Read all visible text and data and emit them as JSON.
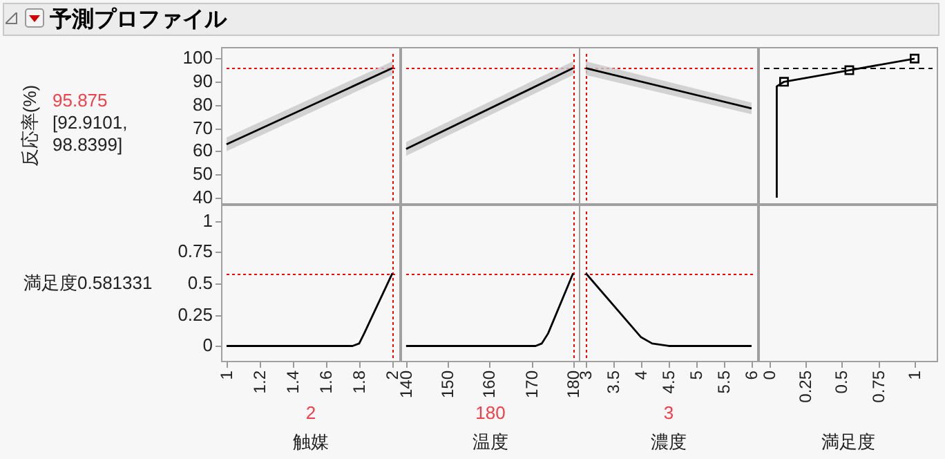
{
  "chart_data": [
    {
      "type": "line",
      "title": "予測プロファイル",
      "ylabel": "反応率(%)",
      "annotations": [
        "95.875",
        "[92.9101, 98.8399]"
      ],
      "xlim": [
        0.967,
        2.05
      ],
      "ylim": [
        37,
        105
      ],
      "yticks": [
        40,
        50,
        60,
        70,
        80,
        90,
        100
      ],
      "tick_labels": "y",
      "ref_lines": [
        {
          "axis": "x",
          "value": 2,
          "color": "#ff0000",
          "line_style": "dotted"
        },
        {
          "axis": "y",
          "value": 95.875,
          "color": "#ff0000",
          "line_style": "dotted"
        }
      ],
      "series": [
        {
          "color": "#000000",
          "x": [
            1,
            2
          ],
          "values": [
            63,
            95.875
          ],
          "lower": [
            60,
            92.9101
          ],
          "upper": [
            66,
            98.8399
          ]
        }
      ]
    },
    {
      "type": "line",
      "xlim": [
        138.7,
        181.7
      ],
      "ylim": [
        37,
        105
      ],
      "tick_labels": false,
      "ref_lines": [
        {
          "axis": "x",
          "value": 180,
          "color": "#ff0000",
          "line_style": "dotted"
        },
        {
          "axis": "y",
          "value": 95.875,
          "color": "#ff0000",
          "line_style": "dotted"
        }
      ],
      "series": [
        {
          "color": "#000000",
          "x": [
            140,
            180
          ],
          "values": [
            61,
            95.875
          ],
          "lower": [
            58,
            92.9101
          ],
          "upper": [
            64,
            98.8399
          ]
        }
      ]
    },
    {
      "type": "line",
      "xlim": [
        2.875,
        6.125
      ],
      "ylim": [
        37,
        105
      ],
      "tick_labels": false,
      "ref_lines": [
        {
          "axis": "x",
          "value": 3,
          "color": "#ff0000",
          "line_style": "dotted"
        },
        {
          "axis": "y",
          "value": 95.875,
          "color": "#ff0000",
          "line_style": "dotted"
        }
      ],
      "series": [
        {
          "color": "#000000",
          "x": [
            3,
            6
          ],
          "values": [
            95.875,
            78.5
          ],
          "lower": [
            92.9101,
            76
          ],
          "upper": [
            98.8399,
            81
          ]
        }
      ]
    },
    {
      "type": "line",
      "xlim": [
        -0.076,
        1.162
      ],
      "ylim": [
        37,
        105
      ],
      "tick_labels": false,
      "ref_lines": [
        {
          "axis": "y",
          "value": 95.875,
          "color": "#000000",
          "line_style": "dashed"
        }
      ],
      "series": [
        {
          "color": "#000000",
          "x": [
            0.05,
            0.05,
            0.1,
            0.55,
            1
          ],
          "values": [
            40,
            88,
            90,
            95,
            100
          ],
          "marker": "none"
        },
        {
          "type": "scatter",
          "color": "#000000",
          "x": [
            0.1,
            0.55,
            1
          ],
          "values": [
            90,
            95,
            100
          ],
          "marker": "square"
        }
      ]
    },
    {
      "type": "line",
      "xlabel": "触媒",
      "ylabel": "満足度0.581331",
      "annotations": [
        "2"
      ],
      "xlim": [
        0.967,
        2.05
      ],
      "xticks": [
        1,
        1.2,
        1.4,
        1.6,
        1.8,
        2
      ],
      "ylim": [
        -0.13,
        1.13
      ],
      "yticks": [
        0,
        0.25,
        0.5,
        0.75,
        1
      ],
      "ref_lines": [
        {
          "axis": "x",
          "value": 2,
          "color": "#ff0000",
          "line_style": "dotted"
        },
        {
          "axis": "y",
          "value": 0.581331,
          "color": "#ff0000",
          "line_style": "dotted"
        }
      ],
      "series": [
        {
          "color": "#000000",
          "x": [
            1,
            1.76,
            1.8,
            1.83,
            2
          ],
          "values": [
            0,
            0,
            0.02,
            0.1,
            0.581331
          ]
        }
      ]
    },
    {
      "type": "line",
      "xlabel": "温度",
      "annotations": [
        "180"
      ],
      "xlim": [
        138.7,
        181.7
      ],
      "xticks": [
        140,
        150,
        160,
        170,
        180
      ],
      "ylim": [
        -0.13,
        1.13
      ],
      "tick_labels": "x",
      "ref_lines": [
        {
          "axis": "x",
          "value": 180,
          "color": "#ff0000",
          "line_style": "dotted"
        },
        {
          "axis": "y",
          "value": 0.581331,
          "color": "#ff0000",
          "line_style": "dotted"
        }
      ],
      "series": [
        {
          "color": "#000000",
          "x": [
            140,
            171,
            172.5,
            174,
            180
          ],
          "values": [
            0,
            0,
            0.02,
            0.1,
            0.581331
          ]
        }
      ]
    },
    {
      "type": "line",
      "xlabel": "濃度",
      "annotations": [
        "3"
      ],
      "xlim": [
        2.875,
        6.125
      ],
      "xticks": [
        3,
        3.5,
        4,
        4.5,
        5,
        5.5,
        6
      ],
      "ylim": [
        -0.13,
        1.13
      ],
      "tick_labels": "x",
      "ref_lines": [
        {
          "axis": "x",
          "value": 3,
          "color": "#ff0000",
          "line_style": "dotted"
        },
        {
          "axis": "y",
          "value": 0.581331,
          "color": "#ff0000",
          "line_style": "dotted"
        }
      ],
      "series": [
        {
          "color": "#000000",
          "x": [
            3,
            4,
            4.2,
            4.5,
            6
          ],
          "values": [
            0.581331,
            0.07,
            0.02,
            0,
            0
          ]
        }
      ]
    },
    {
      "type": "line",
      "xlabel": "満足度",
      "xlim": [
        -0.076,
        1.162
      ],
      "xticks": [
        0,
        0.25,
        0.5,
        0.75,
        1
      ],
      "ylim": [
        -0.13,
        1.13
      ],
      "tick_labels": "x"
    }
  ]
}
